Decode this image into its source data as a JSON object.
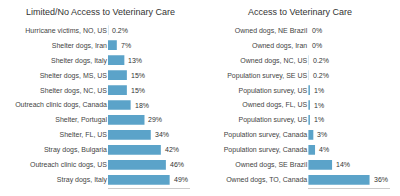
{
  "chart_data": [
    {
      "type": "bar",
      "orientation": "horizontal",
      "title": "Limited/No Access to Veterinary Care",
      "categories": [
        "Hurricane victims, NO, US",
        "Shelter dogs, Iran",
        "Shelter dogs, Italy",
        "Shelter dogs, MS, US",
        "Shelter dogs, NC, US",
        "Outreach clinic dogs, Canada",
        "Shelter, Portugal",
        "Shelter, FL, US",
        "Stray dogs, Bulgaria",
        "Outreach clinic dogs, US",
        "Stray dogs, Italy"
      ],
      "values": [
        0.2,
        7,
        13,
        15,
        15,
        18,
        29,
        34,
        42,
        46,
        49
      ],
      "value_labels": [
        "0.2%",
        "7%",
        "13%",
        "15%",
        "15%",
        "18%",
        "29%",
        "34%",
        "42%",
        "46%",
        "49%"
      ],
      "color": "#5BA3C9",
      "xlim": [
        0,
        65
      ],
      "data_labels": true,
      "tick_labels": "y",
      "grid": false
    },
    {
      "type": "bar",
      "orientation": "horizontal",
      "title": "Access to Veterinary Care",
      "categories": [
        "Owned dogs, NE Brazil",
        "Owned dogs, Iran",
        "Owned dogs, NC, US",
        "Population survey, SE US",
        "Population survey, US",
        "Owned dogs, FL, US",
        "Population survey, US",
        "Population survey, Canada",
        "Population survey, Canada",
        "Owned dogs, SE Brazil",
        "Owned dogs, TO, Canada"
      ],
      "values": [
        0,
        0,
        0.2,
        0.2,
        1,
        1,
        1,
        3,
        4,
        14,
        36
      ],
      "value_labels": [
        "0%",
        "0%",
        "0.2%",
        "0.2%",
        "1%",
        "1%",
        "1%",
        "3%",
        "4%",
        "14%",
        "36%"
      ],
      "color": "#5BA3C9",
      "xlim": [
        0,
        48
      ],
      "data_labels": true,
      "tick_labels": "y",
      "grid": false
    }
  ]
}
